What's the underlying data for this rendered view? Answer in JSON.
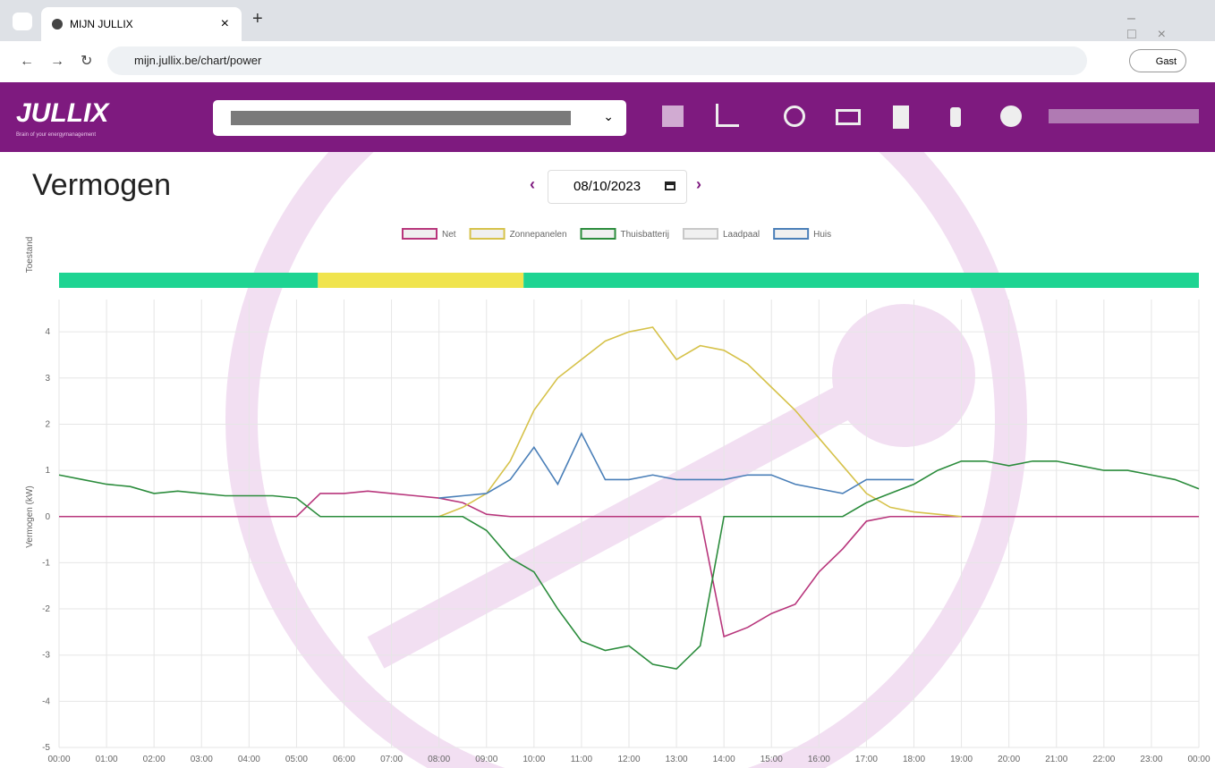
{
  "browser": {
    "tab_title": "MIJN JULLIX",
    "url": "mijn.jullix.be/chart/power",
    "profile": "Gast"
  },
  "app": {
    "logo": "JULLIX",
    "tagline": "Brain of your energymanagement"
  },
  "page": {
    "title": "Vermogen",
    "date": "08/10/2023"
  },
  "chart_data": {
    "type": "line",
    "y_label": "Vermogen (kW)",
    "status": {
      "label": "Toestand",
      "segments": [
        {
          "start": 0,
          "end": 5.45,
          "color": "#1ed492"
        },
        {
          "start": 5.45,
          "end": 9.78,
          "color": "#f0e44e"
        },
        {
          "start": 9.78,
          "end": 24,
          "color": "#1ed492"
        }
      ]
    },
    "x": [
      0,
      0.5,
      1,
      1.5,
      2,
      2.5,
      3,
      3.5,
      4,
      4.5,
      5,
      5.5,
      6,
      6.5,
      7,
      7.5,
      8,
      8.5,
      9,
      9.5,
      10,
      10.5,
      11,
      11.5,
      12,
      12.5,
      13,
      13.5,
      14,
      14.5,
      15,
      15.5,
      16,
      16.5,
      17,
      17.5,
      18,
      18.5,
      19,
      19.5,
      20,
      20.5,
      21,
      21.5,
      22,
      22.5,
      23,
      23.5,
      24
    ],
    "series": [
      {
        "name": "Net",
        "color": "#b8367c",
        "values": [
          0,
          0,
          0,
          0,
          0,
          0,
          0,
          0,
          0,
          0,
          0,
          0.5,
          0.5,
          0.55,
          0.5,
          0.45,
          0.4,
          0.3,
          0.05,
          0,
          0,
          0,
          0,
          0,
          0,
          0,
          0,
          0,
          -2.6,
          -2.4,
          -2.1,
          -1.9,
          -1.2,
          -0.7,
          -0.1,
          0,
          0,
          0,
          0,
          0,
          0,
          0,
          0,
          0,
          0,
          0,
          0,
          0,
          0
        ]
      },
      {
        "name": "Zonnepanelen",
        "color": "#d6c24a",
        "values": [
          null,
          null,
          null,
          null,
          null,
          null,
          null,
          null,
          null,
          null,
          null,
          null,
          null,
          null,
          null,
          null,
          0,
          0.2,
          0.5,
          1.2,
          2.3,
          3.0,
          3.4,
          3.8,
          4.0,
          4.1,
          3.4,
          3.7,
          3.6,
          3.3,
          2.8,
          2.3,
          1.7,
          1.1,
          0.5,
          0.2,
          0.1,
          0.05,
          0,
          null,
          null,
          null,
          null,
          null,
          null,
          null,
          null,
          null,
          null
        ]
      },
      {
        "name": "Thuisbatterij",
        "color": "#2b8c3c",
        "values": [
          0.9,
          0.8,
          0.7,
          0.65,
          0.5,
          0.55,
          0.5,
          0.45,
          0.45,
          0.45,
          0.4,
          0,
          0,
          0,
          0,
          0,
          0,
          0,
          -0.3,
          -0.9,
          -1.2,
          -2.0,
          -2.7,
          -2.9,
          -2.8,
          -3.2,
          -3.3,
          -2.8,
          0,
          0,
          0,
          0,
          0,
          0,
          0.3,
          0.5,
          0.7,
          1.0,
          1.2,
          1.2,
          1.1,
          1.2,
          1.2,
          1.1,
          1.0,
          1.0,
          0.9,
          0.8,
          0.6
        ]
      },
      {
        "name": "Laadpaal",
        "color": "#c8c8c8",
        "values": [
          null,
          null,
          null,
          null,
          null,
          null,
          null,
          null,
          null,
          null,
          null,
          null,
          null,
          null,
          null,
          null,
          null,
          null,
          null,
          null,
          null,
          null,
          null,
          null,
          null,
          null,
          null,
          null,
          null,
          null,
          null,
          null,
          null,
          null,
          null,
          null,
          null,
          null,
          null,
          null,
          null,
          null,
          null,
          null,
          null,
          null,
          null,
          null,
          null
        ]
      },
      {
        "name": "Huis",
        "color": "#4a7fb8",
        "values": [
          null,
          null,
          null,
          null,
          null,
          null,
          null,
          null,
          null,
          null,
          null,
          null,
          null,
          null,
          null,
          null,
          0.4,
          0.45,
          0.5,
          0.8,
          1.5,
          0.7,
          1.8,
          0.8,
          0.8,
          0.9,
          0.8,
          0.8,
          0.8,
          0.9,
          0.9,
          0.7,
          0.6,
          0.5,
          0.8,
          0.8,
          0.8,
          null,
          null,
          null,
          null,
          null,
          null,
          null,
          null,
          null,
          null,
          null,
          null
        ]
      }
    ],
    "xlim": [
      0,
      24
    ],
    "ylim": [
      -5,
      4.7
    ],
    "yticks": [
      -5,
      -4,
      -3,
      -2,
      -1,
      0,
      1,
      2,
      3,
      4
    ],
    "xticks": [
      {
        "value": 0,
        "label": "00:00"
      },
      {
        "value": 1,
        "label": "01:00"
      },
      {
        "value": 2,
        "label": "02:00"
      },
      {
        "value": 3,
        "label": "03:00"
      },
      {
        "value": 4,
        "label": "04:00"
      },
      {
        "value": 5,
        "label": "05:00"
      },
      {
        "value": 6,
        "label": "06:00"
      },
      {
        "value": 7,
        "label": "07:00"
      },
      {
        "value": 8,
        "label": "08:00"
      },
      {
        "value": 9,
        "label": "09:00"
      },
      {
        "value": 10,
        "label": "10:00"
      },
      {
        "value": 11,
        "label": "11:00"
      },
      {
        "value": 12,
        "label": "12:00"
      },
      {
        "value": 13,
        "label": "13:00"
      },
      {
        "value": 14,
        "label": "14:00"
      },
      {
        "value": 15,
        "label": "15:00"
      },
      {
        "value": 16,
        "label": "16:00"
      },
      {
        "value": 17,
        "label": "17:00"
      },
      {
        "value": 18,
        "label": "18:00"
      },
      {
        "value": 19,
        "label": "19:00"
      },
      {
        "value": 20,
        "label": "20:00"
      },
      {
        "value": 21,
        "label": "21:00"
      },
      {
        "value": 22,
        "label": "22:00"
      },
      {
        "value": 23,
        "label": "23:00"
      },
      {
        "value": 24,
        "label": "00:00"
      }
    ],
    "grid": true
  }
}
